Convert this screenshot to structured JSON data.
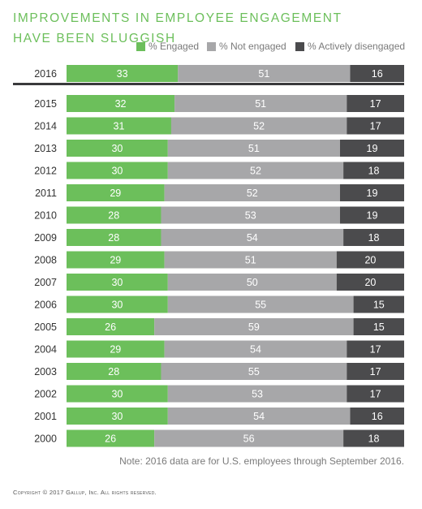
{
  "title": "Improvements in Employee Engagement Have Been Sluggish",
  "note": "Note: 2016 data are for U.S. employees through September 2016.",
  "copyright": "Copyright © 2017 Gallup, Inc. All rights reserved.",
  "colors": {
    "engaged": "#6cbf5b",
    "not_engaged": "#a7a7a9",
    "actively_disengaged": "#4b4b4d",
    "title": "#6cbf5b"
  },
  "chart_data": {
    "type": "bar",
    "orientation": "horizontal",
    "stacked": true,
    "title": "Improvements in Employee Engagement Have Been Sluggish",
    "legend_position": "top-right",
    "categories": [
      "2016",
      "2015",
      "2014",
      "2013",
      "2012",
      "2011",
      "2010",
      "2009",
      "2008",
      "2007",
      "2006",
      "2005",
      "2004",
      "2003",
      "2002",
      "2001",
      "2000"
    ],
    "series": [
      {
        "name": "% Engaged",
        "values": [
          33,
          32,
          31,
          30,
          30,
          29,
          28,
          28,
          29,
          30,
          30,
          26,
          29,
          28,
          30,
          30,
          26
        ]
      },
      {
        "name": "% Not engaged",
        "values": [
          51,
          51,
          52,
          51,
          52,
          52,
          53,
          54,
          51,
          50,
          55,
          59,
          54,
          55,
          53,
          54,
          56
        ]
      },
      {
        "name": "% Actively disengaged",
        "values": [
          16,
          17,
          17,
          19,
          18,
          19,
          19,
          18,
          20,
          20,
          15,
          15,
          17,
          17,
          17,
          16,
          18
        ]
      }
    ],
    "xlim": [
      0,
      100
    ],
    "grid": false
  }
}
